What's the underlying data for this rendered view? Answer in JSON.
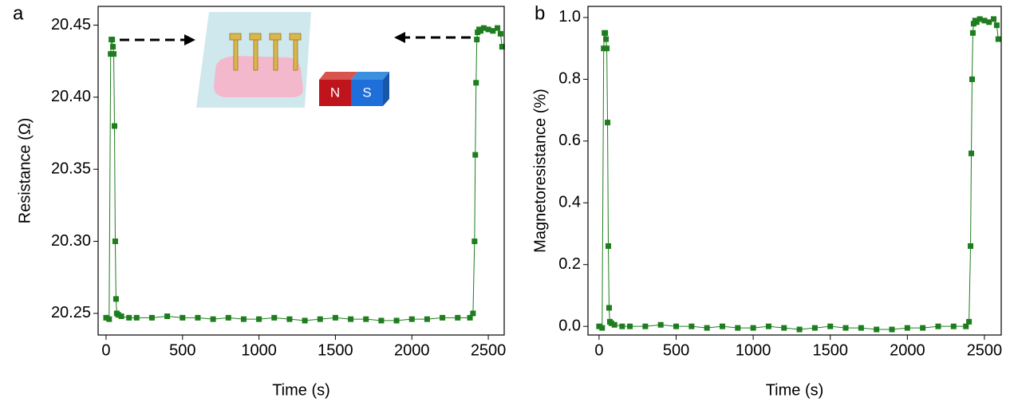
{
  "chart_data": [
    {
      "type": "line",
      "panel_label": "a",
      "xlabel": "Time (s)",
      "ylabel": "Resistance (Ω)",
      "annotations": [
        "N",
        "S"
      ],
      "xlim": [
        -52,
        2604
      ],
      "ylim": [
        20.235,
        20.463
      ],
      "xticks": [
        0,
        500,
        1000,
        1500,
        2000,
        2500
      ],
      "yticks": [
        20.25,
        {
          "value": 20.3,
          "label": "20.30"
        },
        20.35,
        {
          "value": 20.4,
          "label": "20.40"
        },
        20.45
      ],
      "series": [
        {
          "color": "#1e7d1e",
          "x": [
            0,
            20,
            30,
            35,
            40,
            45,
            50,
            55,
            60,
            65,
            70,
            80,
            100,
            150,
            200,
            300,
            400,
            500,
            600,
            700,
            800,
            900,
            1000,
            1100,
            1200,
            1300,
            1400,
            1500,
            1600,
            1700,
            1800,
            1900,
            2000,
            2100,
            2200,
            2300,
            2380,
            2400,
            2410,
            2415,
            2420,
            2425,
            2430,
            2440,
            2450,
            2470,
            2500,
            2530,
            2560,
            2580,
            2590
          ],
          "values": [
            20.247,
            20.246,
            20.43,
            20.44,
            20.44,
            20.435,
            20.43,
            20.38,
            20.3,
            20.26,
            20.25,
            20.249,
            20.248,
            20.247,
            20.247,
            20.247,
            20.248,
            20.247,
            20.247,
            20.246,
            20.247,
            20.246,
            20.246,
            20.247,
            20.246,
            20.245,
            20.246,
            20.247,
            20.246,
            20.246,
            20.245,
            20.245,
            20.246,
            20.246,
            20.247,
            20.247,
            20.247,
            20.25,
            20.3,
            20.36,
            20.41,
            20.44,
            20.445,
            20.447,
            20.446,
            20.448,
            20.447,
            20.446,
            20.448,
            20.444,
            20.435
          ]
        }
      ]
    },
    {
      "type": "line",
      "panel_label": "b",
      "xlabel": "Time (s)",
      "ylabel": "Magnetoresistance (%)",
      "xlim": [
        -72,
        2609
      ],
      "ylim": [
        -0.028,
        1.036
      ],
      "xticks": [
        0,
        500,
        1000,
        1500,
        2000,
        2500
      ],
      "yticks": [
        {
          "value": 0,
          "label": "0.0"
        },
        0.2,
        0.4,
        0.6,
        0.8,
        {
          "value": 1,
          "label": "1.0"
        }
      ],
      "series": [
        {
          "color": "#1e7d1e",
          "x": [
            0,
            20,
            30,
            35,
            40,
            45,
            50,
            55,
            60,
            65,
            70,
            80,
            100,
            150,
            200,
            300,
            400,
            500,
            600,
            700,
            800,
            900,
            1000,
            1100,
            1200,
            1300,
            1400,
            1500,
            1600,
            1700,
            1800,
            1900,
            2000,
            2100,
            2200,
            2300,
            2380,
            2400,
            2410,
            2415,
            2420,
            2425,
            2430,
            2440,
            2450,
            2470,
            2500,
            2530,
            2560,
            2580,
            2590
          ],
          "values": [
            0,
            -0.005,
            0.9,
            0.95,
            0.95,
            0.93,
            0.9,
            0.66,
            0.26,
            0.06,
            0.015,
            0.01,
            0.005,
            0,
            0,
            0,
            0.005,
            0,
            0,
            -0.005,
            0,
            -0.005,
            -0.005,
            0,
            -0.005,
            -0.01,
            -0.005,
            0,
            -0.005,
            -0.005,
            -0.01,
            -0.01,
            -0.005,
            -0.005,
            0,
            0,
            0,
            0.015,
            0.26,
            0.56,
            0.8,
            0.95,
            0.98,
            0.99,
            0.985,
            0.995,
            0.99,
            0.985,
            0.995,
            0.975,
            0.93
          ]
        }
      ]
    }
  ]
}
